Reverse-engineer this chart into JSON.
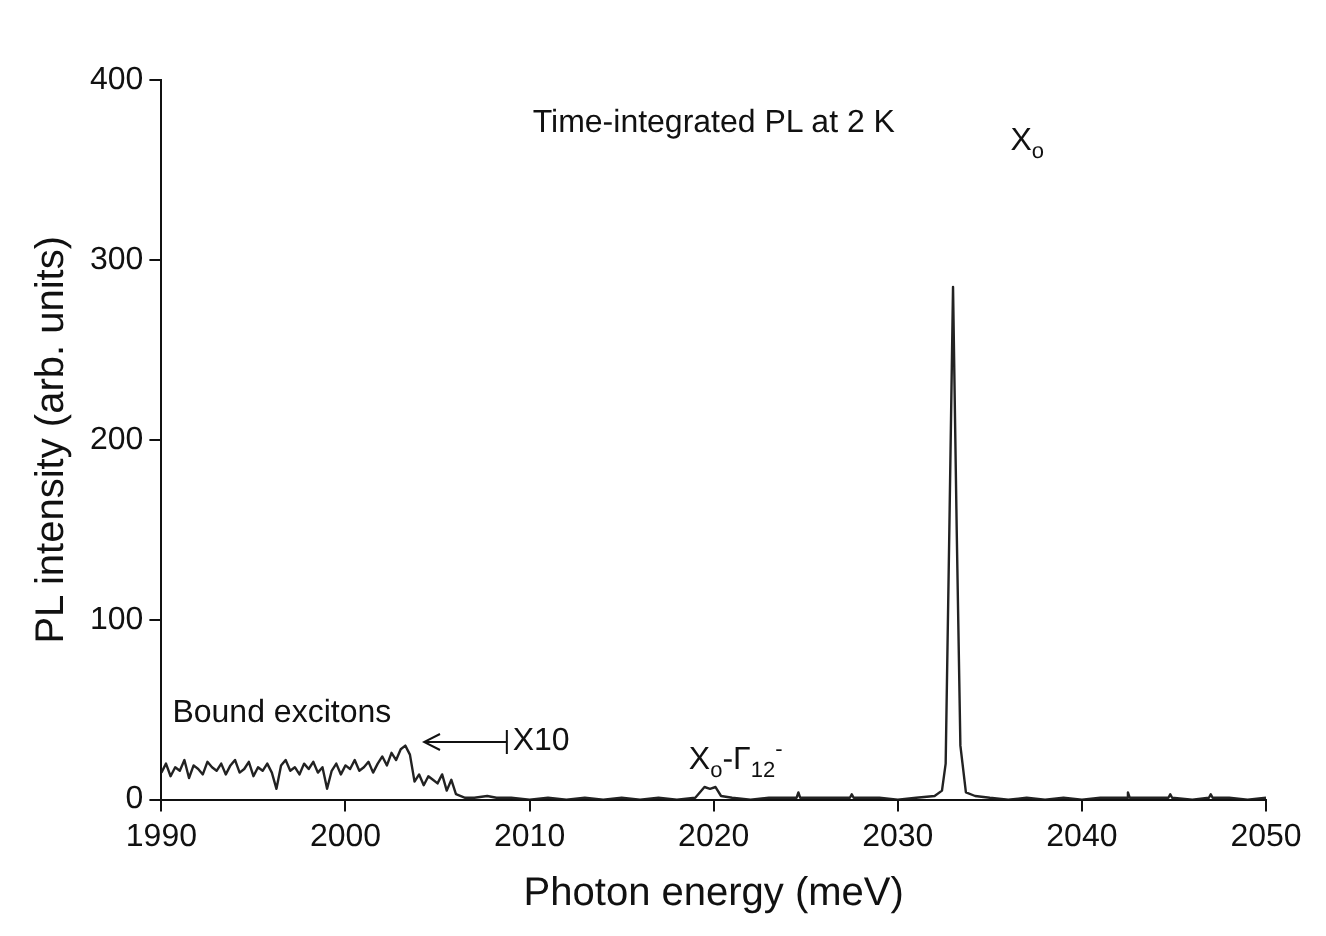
{
  "chart_data": {
    "type": "line",
    "title": "Time-integrated PL at 2 K",
    "xlabel": "Photon energy (meV)",
    "ylabel": "PL intensity (arb. units)",
    "xlim": [
      1990,
      2050
    ],
    "xticks": [
      1990,
      2000,
      2010,
      2020,
      2030,
      2040,
      2050
    ],
    "ylim": [
      0,
      400
    ],
    "yticks": [
      0,
      100,
      200,
      300,
      400
    ],
    "grid": false,
    "legend": false,
    "marker": "none",
    "line_style": "solid",
    "annotations": [
      "X$_{o}$",
      "X$_{o}$-Γ$_{12}$$^{-}$",
      "Bound excitons",
      "X10"
    ],
    "series": [
      {
        "color": "#222222",
        "x": [
          1990,
          1990.25,
          1990.5,
          1990.75,
          1991,
          1991.25,
          1991.5,
          1991.75,
          1992,
          1992.25,
          1992.5,
          1992.75,
          1993,
          1993.25,
          1993.5,
          1993.75,
          1994,
          1994.25,
          1994.5,
          1994.75,
          1995,
          1995.25,
          1995.5,
          1995.75,
          1996,
          1996.25,
          1996.5,
          1996.75,
          1997,
          1997.25,
          1997.5,
          1997.75,
          1998,
          1998.25,
          1998.5,
          1998.75,
          1999,
          1999.25,
          1999.5,
          1999.75,
          2000,
          2000.25,
          2000.5,
          2000.75,
          2001,
          2001.25,
          2001.5,
          2001.75,
          2002,
          2002.25,
          2002.5,
          2002.75,
          2003,
          2003.25,
          2003.5,
          2003.75,
          2004,
          2004.25,
          2004.5,
          2004.75,
          2005,
          2005.25,
          2005.5,
          2005.75,
          2006,
          2006.5,
          2007,
          2007.7,
          2008.2,
          2009,
          2010,
          2011,
          2012,
          2013,
          2014,
          2015,
          2016,
          2017,
          2018,
          2019,
          2019.5,
          2019.8,
          2020.1,
          2020.4,
          2021,
          2022,
          2023,
          2024.5,
          2024.6,
          2024.7,
          2026,
          2027.4,
          2027.5,
          2027.6,
          2029,
          2030,
          2031,
          2032,
          2032.4,
          2032.6,
          2032.8,
          2033,
          2033.2,
          2033.4,
          2033.7,
          2034.2,
          2035,
          2036,
          2037,
          2038,
          2039,
          2040,
          2041,
          2042.4,
          2042.5,
          2042.6,
          2043.5,
          2044.7,
          2044.8,
          2044.9,
          2046,
          2046.9,
          2047,
          2047.1,
          2048,
          2049,
          2050
        ],
        "values": [
          15,
          20,
          13,
          18,
          16,
          22,
          12,
          19,
          17,
          14,
          21,
          18,
          16,
          20,
          14,
          19,
          22,
          15,
          17,
          21,
          13,
          18,
          16,
          20,
          15,
          6,
          19,
          22,
          16,
          18,
          14,
          20,
          17,
          21,
          15,
          18,
          6,
          16,
          20,
          14,
          19,
          17,
          22,
          16,
          18,
          21,
          15,
          20,
          24,
          19,
          26,
          22,
          28,
          30,
          25,
          10,
          14,
          8,
          13,
          11,
          9,
          14,
          5,
          11,
          3,
          1,
          1,
          2,
          1,
          1,
          0,
          1,
          0,
          1,
          0,
          1,
          0,
          1,
          0,
          1,
          7,
          6,
          7,
          2,
          1,
          0,
          1,
          1,
          4,
          1,
          1,
          1,
          3,
          1,
          1,
          0,
          1,
          2,
          5,
          20,
          150,
          285,
          150,
          30,
          4,
          2,
          1,
          0,
          1,
          0,
          1,
          0,
          1,
          1,
          4,
          1,
          1,
          1,
          3,
          1,
          0,
          1,
          3,
          1,
          1,
          0,
          1
        ]
      }
    ]
  }
}
